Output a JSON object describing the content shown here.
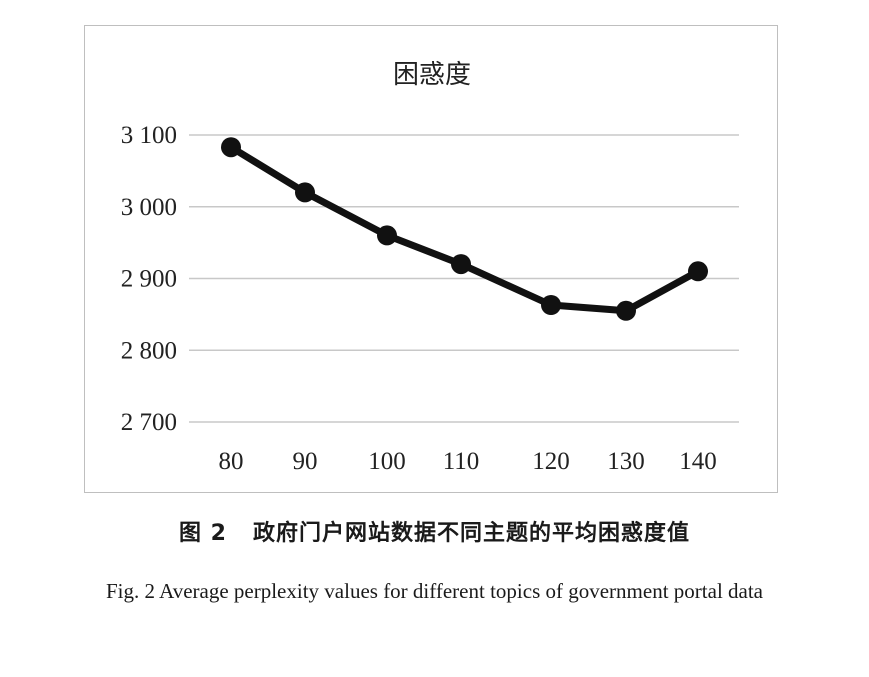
{
  "chart_data": {
    "type": "line",
    "title": "困惑度",
    "categories": [
      "80",
      "90",
      "100",
      "110",
      "120",
      "130",
      "140"
    ],
    "series": [
      {
        "values": [
          3083,
          3020,
          2960,
          2920,
          2863,
          2855,
          2910
        ]
      }
    ],
    "yticks": [
      "2 700",
      "2 800",
      "2 900",
      "3 000",
      "3 100"
    ],
    "ytick_values": [
      2700,
      2800,
      2900,
      3000,
      3100
    ],
    "ylim": [
      2700,
      3100
    ],
    "grid": true,
    "legend": "none",
    "colors": {
      "line": "#111111",
      "grid": "#c8c8c8"
    }
  },
  "caption": {
    "zh_number": "图 2",
    "zh_text": "政府门户网站数据不同主题的平均困惑度值",
    "en_text": "Fig. 2 Average perplexity values for different topics of government portal data"
  }
}
